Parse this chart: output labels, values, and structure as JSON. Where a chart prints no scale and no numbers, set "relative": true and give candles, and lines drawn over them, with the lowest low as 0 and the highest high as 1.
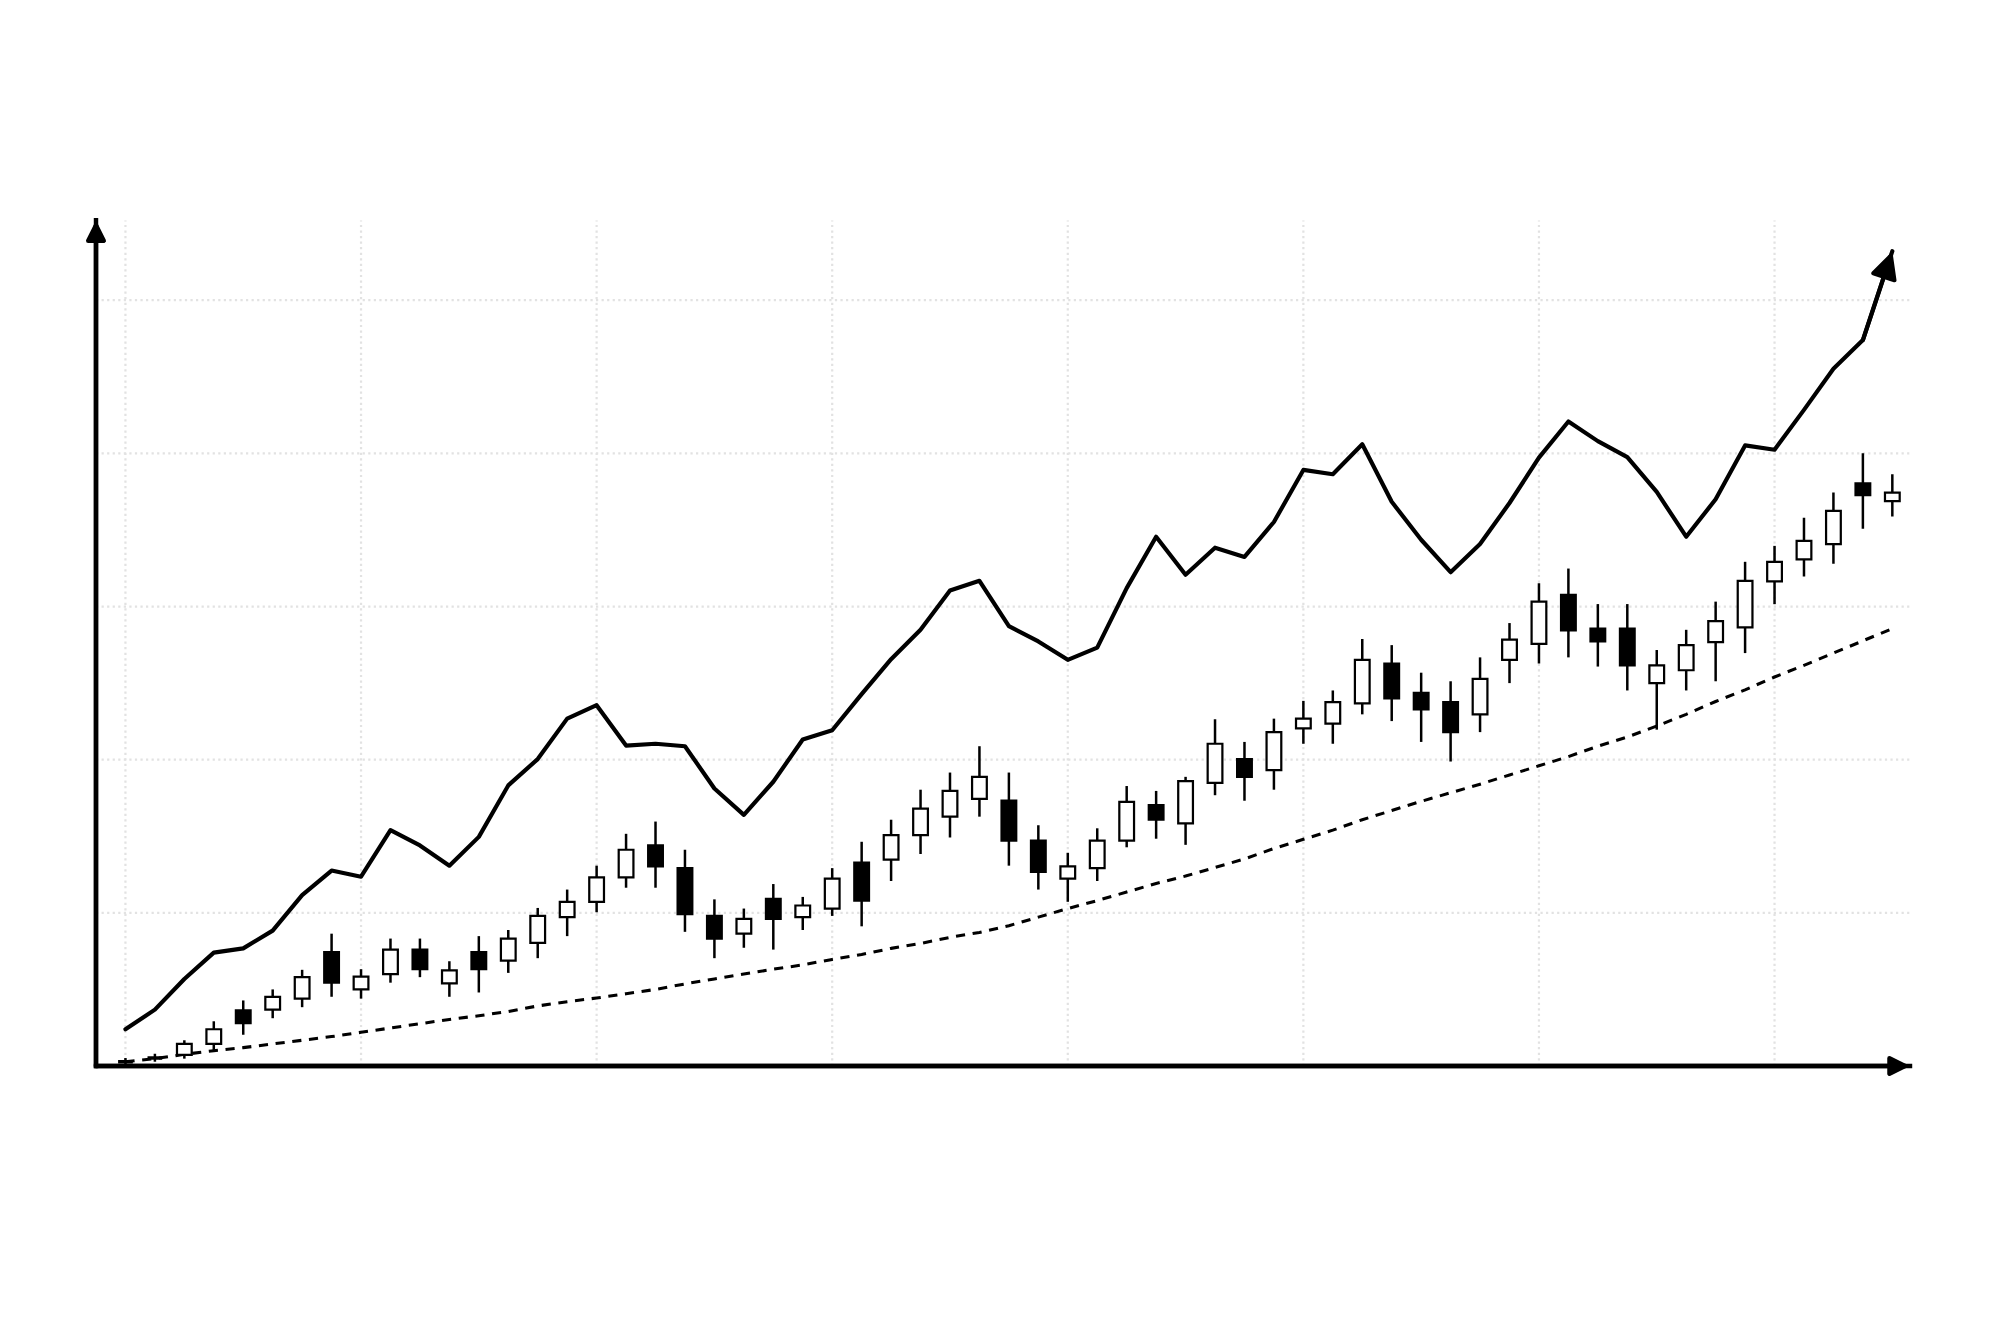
{
  "chart_data": {
    "type": "candlestick",
    "relative": true,
    "grid": true,
    "tick_labels": false,
    "categories": [
      null,
      null,
      null,
      null,
      null,
      null,
      null,
      null,
      null,
      null,
      null,
      null,
      null,
      null,
      null,
      null,
      null,
      null,
      null,
      null,
      null,
      null,
      null,
      null,
      null,
      null,
      null,
      null,
      null,
      null,
      null,
      null,
      null,
      null,
      null,
      null,
      null,
      null,
      null,
      null,
      null,
      null,
      null,
      null,
      null,
      null,
      null,
      null,
      null,
      null,
      null,
      null,
      null,
      null,
      null,
      null,
      null,
      null,
      null,
      null,
      null
    ],
    "ohlc": [
      [
        0.007,
        0.013,
        0.0,
        0.007
      ],
      [
        0.013,
        0.02,
        0.007,
        0.013
      ],
      [
        0.018,
        0.042,
        0.012,
        0.036
      ],
      [
        0.036,
        0.073,
        0.025,
        0.06
      ],
      [
        0.091,
        0.107,
        0.051,
        0.07
      ],
      [
        0.092,
        0.125,
        0.078,
        0.113
      ],
      [
        0.11,
        0.157,
        0.096,
        0.145
      ],
      [
        0.186,
        0.216,
        0.113,
        0.136
      ],
      [
        0.125,
        0.158,
        0.11,
        0.146
      ],
      [
        0.15,
        0.208,
        0.136,
        0.19
      ],
      [
        0.19,
        0.208,
        0.145,
        0.158
      ],
      [
        0.135,
        0.171,
        0.113,
        0.156
      ],
      [
        0.186,
        0.212,
        0.12,
        0.158
      ],
      [
        0.172,
        0.222,
        0.152,
        0.208
      ],
      [
        0.201,
        0.258,
        0.176,
        0.245
      ],
      [
        0.243,
        0.288,
        0.212,
        0.268
      ],
      [
        0.268,
        0.327,
        0.251,
        0.308
      ],
      [
        0.308,
        0.379,
        0.291,
        0.353
      ],
      [
        0.36,
        0.399,
        0.291,
        0.326
      ],
      [
        0.323,
        0.353,
        0.219,
        0.248
      ],
      [
        0.245,
        0.272,
        0.176,
        0.208
      ],
      [
        0.216,
        0.257,
        0.193,
        0.24
      ],
      [
        0.273,
        0.297,
        0.19,
        0.24
      ],
      [
        0.243,
        0.276,
        0.222,
        0.262
      ],
      [
        0.257,
        0.323,
        0.245,
        0.306
      ],
      [
        0.332,
        0.366,
        0.228,
        0.27
      ],
      [
        0.337,
        0.402,
        0.302,
        0.377
      ],
      [
        0.377,
        0.451,
        0.346,
        0.42
      ],
      [
        0.407,
        0.479,
        0.373,
        0.449
      ],
      [
        0.436,
        0.522,
        0.407,
        0.472
      ],
      [
        0.433,
        0.479,
        0.327,
        0.368
      ],
      [
        0.368,
        0.393,
        0.288,
        0.317
      ],
      [
        0.306,
        0.348,
        0.268,
        0.326
      ],
      [
        0.323,
        0.388,
        0.302,
        0.368
      ],
      [
        0.368,
        0.457,
        0.357,
        0.431
      ],
      [
        0.426,
        0.449,
        0.371,
        0.402
      ],
      [
        0.396,
        0.472,
        0.361,
        0.465
      ],
      [
        0.462,
        0.566,
        0.442,
        0.526
      ],
      [
        0.501,
        0.529,
        0.433,
        0.472
      ],
      [
        0.483,
        0.567,
        0.451,
        0.545
      ],
      [
        0.551,
        0.596,
        0.526,
        0.567
      ],
      [
        0.559,
        0.613,
        0.526,
        0.594
      ],
      [
        0.592,
        0.697,
        0.574,
        0.663
      ],
      [
        0.657,
        0.687,
        0.563,
        0.6
      ],
      [
        0.609,
        0.642,
        0.529,
        0.582
      ],
      [
        0.594,
        0.628,
        0.497,
        0.545
      ],
      [
        0.574,
        0.667,
        0.545,
        0.632
      ],
      [
        0.663,
        0.723,
        0.625,
        0.696
      ],
      [
        0.689,
        0.788,
        0.657,
        0.758
      ],
      [
        0.769,
        0.812,
        0.667,
        0.711
      ],
      [
        0.714,
        0.754,
        0.652,
        0.693
      ],
      [
        0.714,
        0.754,
        0.613,
        0.654
      ],
      [
        0.625,
        0.679,
        0.549,
        0.654
      ],
      [
        0.646,
        0.712,
        0.613,
        0.687
      ],
      [
        0.692,
        0.758,
        0.628,
        0.726
      ],
      [
        0.716,
        0.823,
        0.674,
        0.792
      ],
      [
        0.791,
        0.849,
        0.754,
        0.823
      ],
      [
        0.827,
        0.895,
        0.799,
        0.857
      ],
      [
        0.852,
        0.936,
        0.82,
        0.906
      ],
      [
        0.951,
        1.0,
        0.877,
        0.932
      ],
      [
        0.922,
        0.966,
        0.897,
        0.936
      ]
    ],
    "series": [
      {
        "type": "line",
        "color": "#000000",
        "line_style": "solid",
        "values": [
          0.06,
          0.092,
          0.142,
          0.185,
          0.192,
          0.221,
          0.279,
          0.319,
          0.309,
          0.385,
          0.36,
          0.327,
          0.374,
          0.458,
          0.501,
          0.567,
          0.589,
          0.523,
          0.526,
          0.522,
          0.453,
          0.41,
          0.464,
          0.533,
          0.548,
          0.607,
          0.664,
          0.712,
          0.776,
          0.792,
          0.718,
          0.693,
          0.663,
          0.683,
          0.78,
          0.864,
          0.802,
          0.846,
          0.831,
          0.888,
          0.973,
          0.966,
          1.015,
          0.921,
          0.859,
          0.806,
          0.852,
          0.919,
          0.993,
          1.052,
          1.02,
          0.994,
          0.937,
          0.864,
          0.925,
          1.013,
          1.006,
          1.071,
          1.138,
          1.185,
          1.33
        ]
      },
      {
        "type": "line",
        "color": "#000000",
        "line_style": "dashed",
        "values": [
          0.007,
          0.012,
          0.019,
          0.025,
          0.03,
          0.036,
          0.042,
          0.048,
          0.055,
          0.062,
          0.069,
          0.076,
          0.082,
          0.089,
          0.098,
          0.105,
          0.111,
          0.118,
          0.125,
          0.134,
          0.142,
          0.15,
          0.158,
          0.165,
          0.174,
          0.182,
          0.192,
          0.2,
          0.21,
          0.218,
          0.229,
          0.243,
          0.257,
          0.27,
          0.284,
          0.298,
          0.31,
          0.324,
          0.338,
          0.355,
          0.37,
          0.385,
          0.402,
          0.417,
          0.432,
          0.446,
          0.46,
          0.475,
          0.49,
          0.505,
          0.522,
          0.537,
          0.555,
          0.574,
          0.595,
          0.614,
          0.635,
          0.654,
          0.674,
          0.694,
          0.714
        ]
      }
    ]
  }
}
